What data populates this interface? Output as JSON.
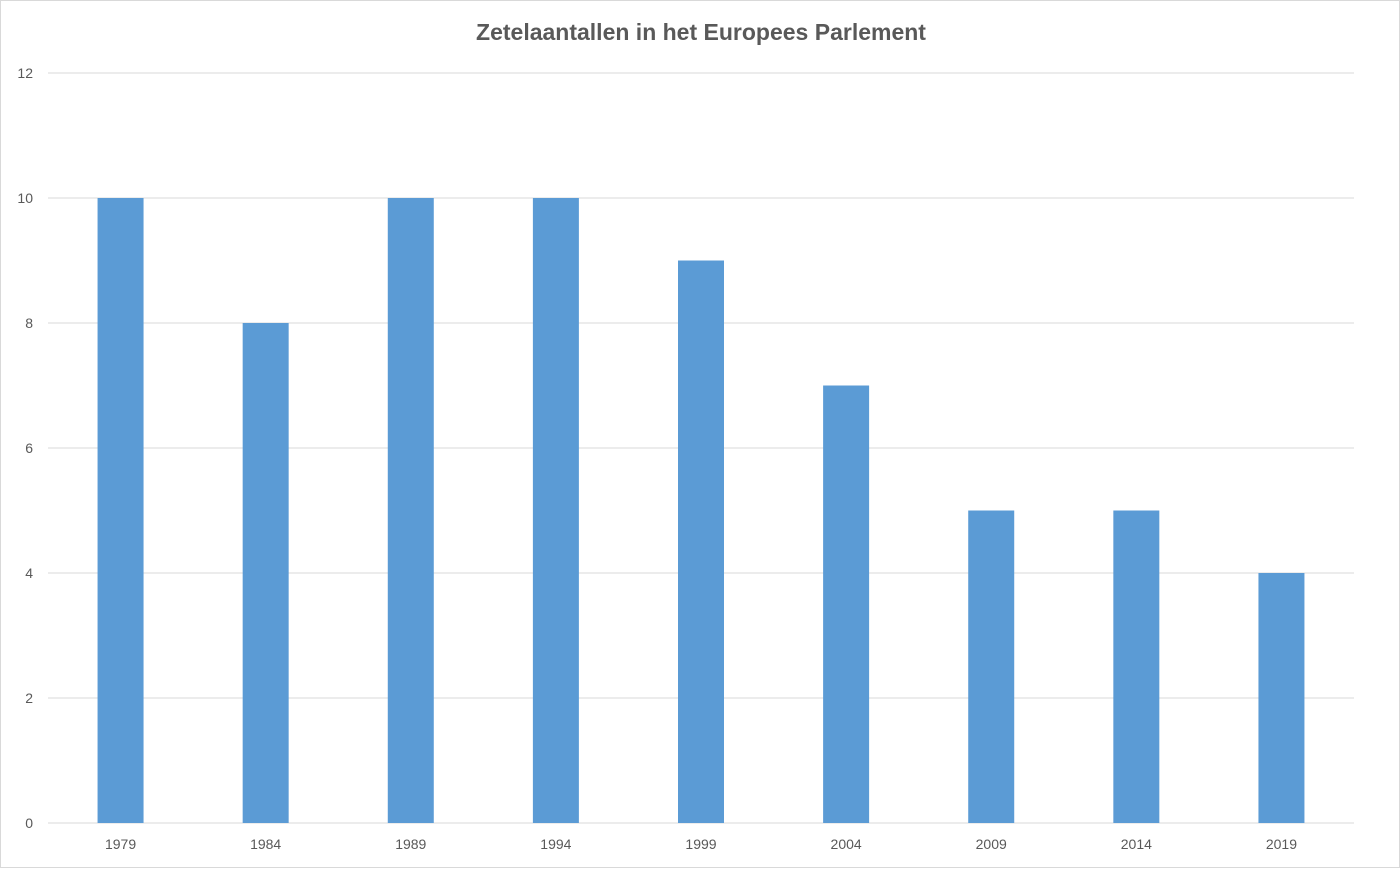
{
  "chart_data": {
    "type": "bar",
    "title": "Zetelaantallen in het Europees Parlement",
    "xlabel": "",
    "ylabel": "",
    "categories": [
      "1979",
      "1984",
      "1989",
      "1994",
      "1999",
      "2004",
      "2009",
      "2014",
      "2019"
    ],
    "values": [
      10,
      8,
      10,
      10,
      9,
      7,
      5,
      5,
      4
    ],
    "ylim": [
      0,
      12
    ],
    "yticks": [
      0,
      2,
      4,
      6,
      8,
      10,
      12
    ],
    "grid": true,
    "legend": "none",
    "bar_color": "#5b9bd5",
    "gridline_color": "#d9d9d9",
    "text_color": "#595959"
  }
}
